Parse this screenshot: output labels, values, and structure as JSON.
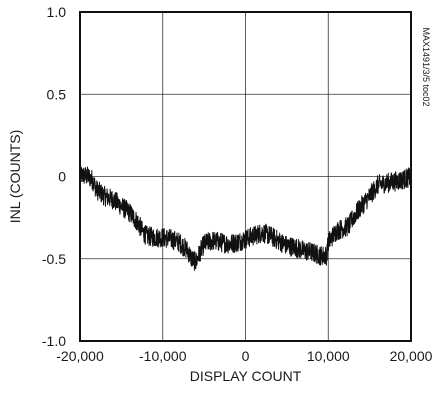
{
  "chart_data": {
    "type": "line",
    "title": "",
    "xlabel": "DISPLAY COUNT",
    "ylabel": "INL (COUNTS)",
    "xlim": [
      -20000,
      20000
    ],
    "ylim": [
      -1.0,
      1.0
    ],
    "x_ticks": [
      -20000,
      -10000,
      0,
      10000,
      20000
    ],
    "x_tick_labels": [
      "-20,000",
      "-10,000",
      "0",
      "10,000",
      "20,000"
    ],
    "y_ticks": [
      1.0,
      0.5,
      0,
      -0.5,
      -1.0
    ],
    "y_tick_labels": [
      "1.0",
      "0.5",
      "0",
      "-0.5",
      "-1.0"
    ],
    "grid": true,
    "figure_code": "MAX1491/3/5 toc02",
    "series": [
      {
        "color": "#111111",
        "noise_band": 0.06,
        "x": [
          -20000,
          -19000,
          -18500,
          -18000,
          -17000,
          -16000,
          -15000,
          -14000,
          -13000,
          -12500,
          -12000,
          -11000,
          -10000,
          -9000,
          -8000,
          -7000,
          -6500,
          -6000,
          -5500,
          -5000,
          -4000,
          -3000,
          -2000,
          -1000,
          0,
          1000,
          2000,
          3000,
          4000,
          5000,
          6000,
          7000,
          8000,
          9000,
          9800,
          10000,
          11000,
          12000,
          12500,
          13000,
          14000,
          15000,
          16000,
          17000,
          18000,
          19000,
          20000
        ],
        "y": [
          0.01,
          0.0,
          -0.02,
          -0.08,
          -0.12,
          -0.14,
          -0.18,
          -0.22,
          -0.28,
          -0.33,
          -0.36,
          -0.37,
          -0.37,
          -0.38,
          -0.4,
          -0.45,
          -0.5,
          -0.52,
          -0.46,
          -0.41,
          -0.39,
          -0.4,
          -0.41,
          -0.4,
          -0.38,
          -0.36,
          -0.34,
          -0.36,
          -0.39,
          -0.42,
          -0.43,
          -0.45,
          -0.46,
          -0.48,
          -0.48,
          -0.4,
          -0.33,
          -0.31,
          -0.3,
          -0.25,
          -0.18,
          -0.12,
          -0.05,
          -0.04,
          -0.03,
          -0.02,
          0.0
        ]
      }
    ]
  }
}
